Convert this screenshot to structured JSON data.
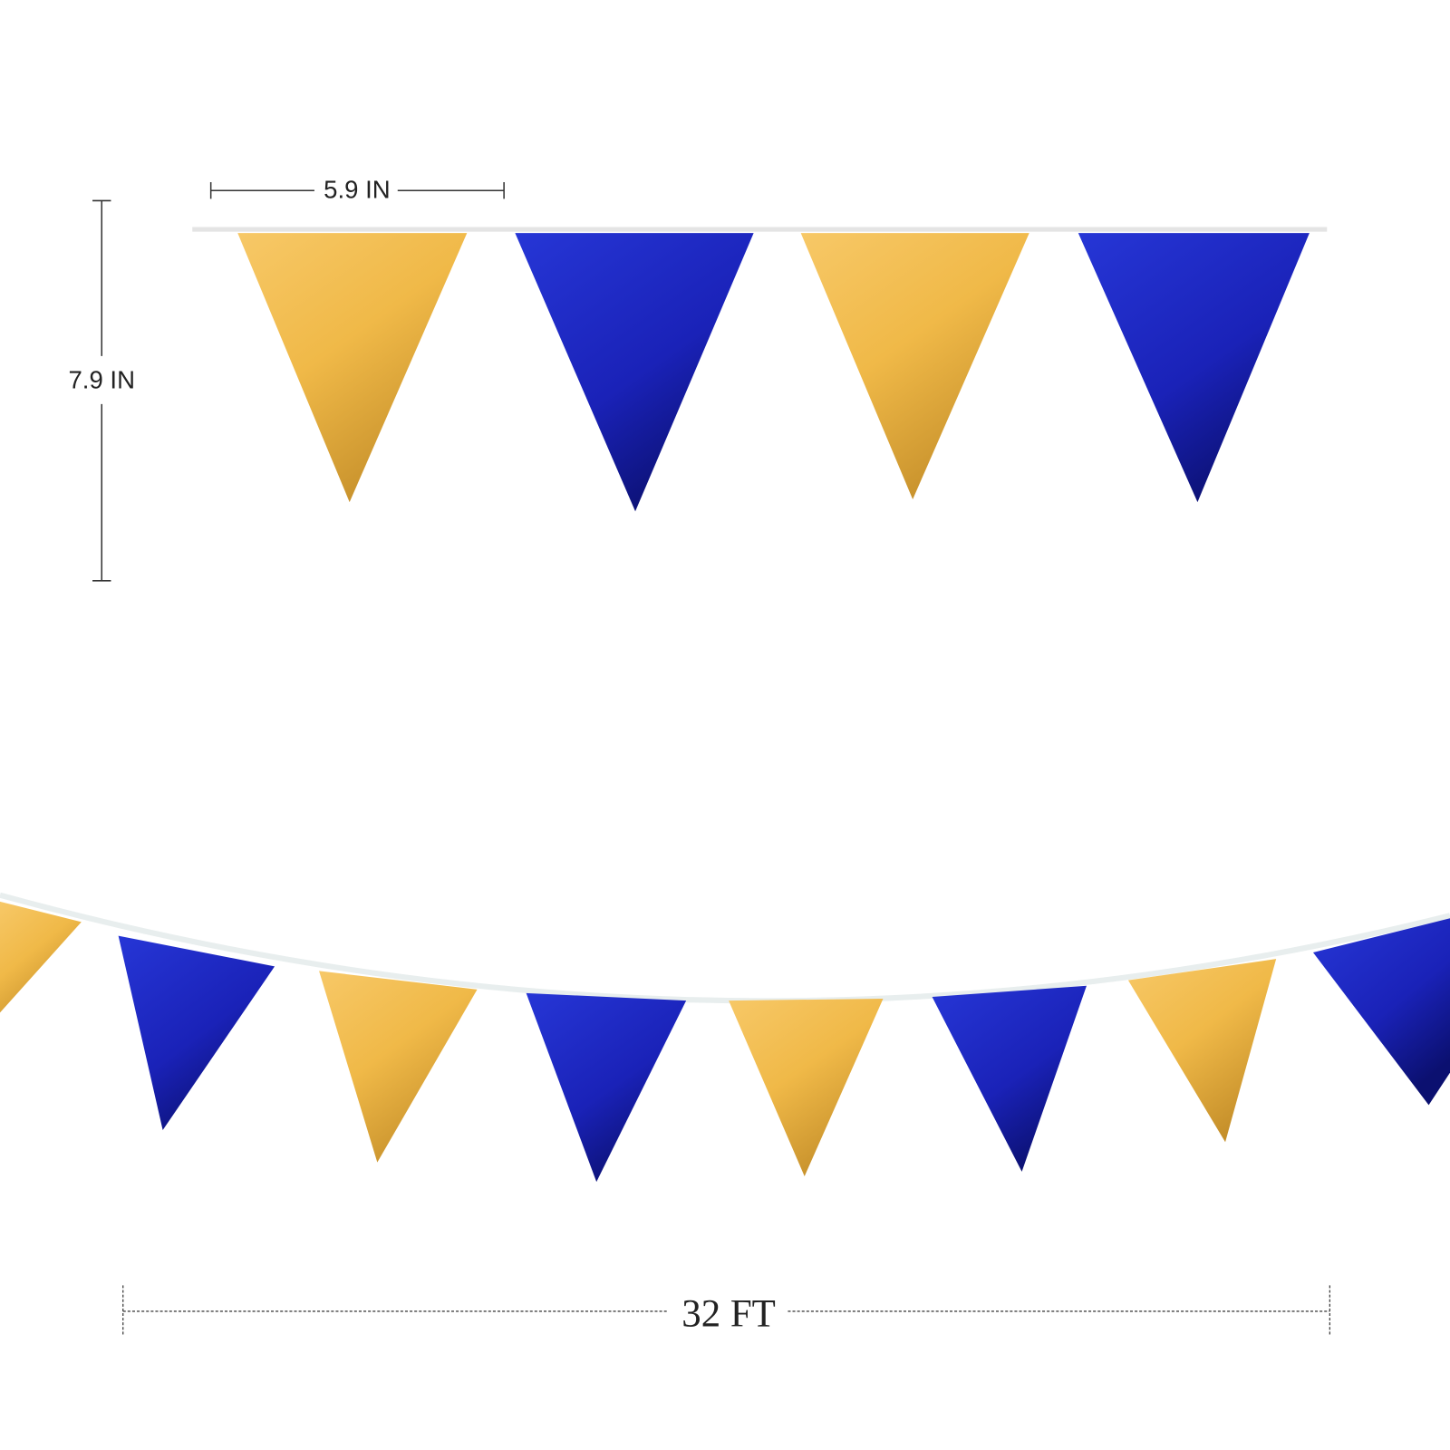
{
  "dimensions": {
    "width": "5.9 IN",
    "height": "7.9 IN",
    "length": "32 FT"
  }
}
